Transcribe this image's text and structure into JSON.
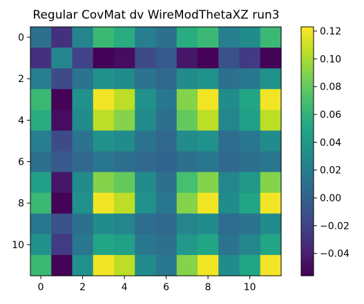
{
  "chart_data": {
    "type": "heatmap",
    "title": "Regular CovMat dv WireModThetaXZ run3",
    "xlabel": "",
    "ylabel": "",
    "rows": 12,
    "cols": 12,
    "x_ticks": [
      "0",
      "2",
      "4",
      "6",
      "8",
      "10"
    ],
    "y_ticks": [
      "0",
      "2",
      "4",
      "6",
      "8",
      "10"
    ],
    "colorbar": {
      "colormap": "viridis",
      "vmin": -0.056,
      "vmax": 0.123,
      "tick_values": [
        -0.04,
        -0.02,
        0.0,
        0.02,
        0.04,
        0.06,
        0.08,
        0.1,
        0.12
      ],
      "tick_labels": [
        "−0.04",
        "−0.02",
        "0.00",
        "0.02",
        "0.04",
        "0.06",
        "0.08",
        "0.10",
        "0.12"
      ]
    },
    "values": [
      [
        0.01,
        -0.03,
        0.025,
        0.065,
        0.055,
        0.02,
        0.01,
        0.055,
        0.065,
        0.02,
        0.03,
        0.065
      ],
      [
        -0.03,
        0.025,
        -0.02,
        -0.055,
        -0.05,
        -0.015,
        -0.005,
        -0.045,
        -0.055,
        -0.01,
        -0.025,
        -0.055
      ],
      [
        0.02,
        -0.015,
        0.012,
        0.035,
        0.03,
        0.012,
        0.005,
        0.03,
        0.035,
        0.01,
        0.015,
        0.035
      ],
      [
        0.065,
        -0.055,
        0.035,
        0.12,
        0.105,
        0.035,
        0.015,
        0.09,
        0.12,
        0.03,
        0.05,
        0.12
      ],
      [
        0.055,
        -0.05,
        0.03,
        0.105,
        0.09,
        0.03,
        0.01,
        0.08,
        0.105,
        0.025,
        0.045,
        0.105
      ],
      [
        0.02,
        -0.015,
        0.012,
        0.035,
        0.03,
        0.012,
        0.005,
        0.03,
        0.035,
        0.008,
        0.015,
        0.03
      ],
      [
        0.01,
        -0.005,
        0.005,
        0.015,
        0.01,
        0.005,
        0.002,
        0.01,
        0.015,
        0.005,
        0.01,
        0.015
      ],
      [
        0.045,
        -0.045,
        0.03,
        0.09,
        0.08,
        0.03,
        0.01,
        0.07,
        0.09,
        0.025,
        0.04,
        0.09
      ],
      [
        0.065,
        -0.055,
        0.035,
        0.12,
        0.105,
        0.035,
        0.015,
        0.09,
        0.12,
        0.03,
        0.05,
        0.12
      ],
      [
        0.015,
        -0.01,
        0.01,
        0.03,
        0.025,
        0.008,
        0.005,
        0.025,
        0.03,
        0.008,
        0.012,
        0.03
      ],
      [
        0.035,
        -0.025,
        0.015,
        0.05,
        0.045,
        0.015,
        0.01,
        0.04,
        0.05,
        0.012,
        0.025,
        0.05
      ],
      [
        0.065,
        -0.055,
        0.035,
        0.12,
        0.105,
        0.03,
        0.015,
        0.09,
        0.12,
        0.03,
        0.05,
        0.12
      ]
    ]
  }
}
